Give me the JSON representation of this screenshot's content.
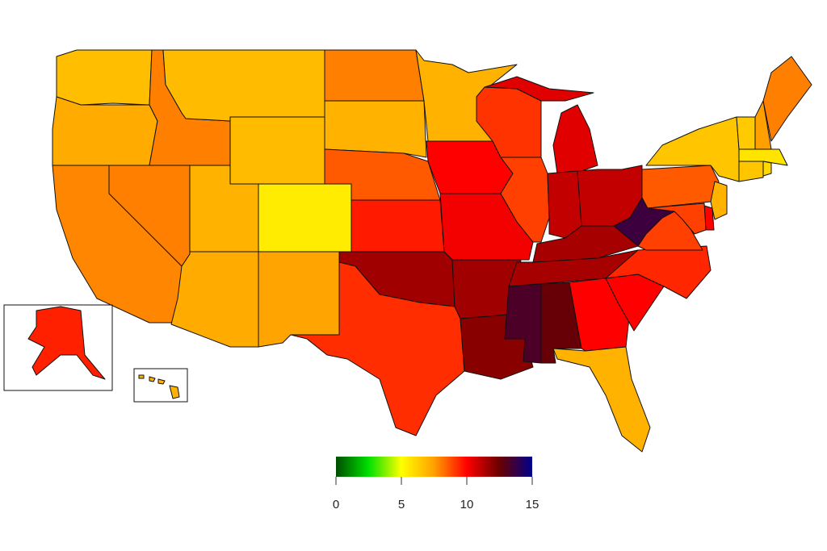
{
  "map": {
    "type": "choropleth",
    "region": "United States",
    "color_scale": {
      "min": 0,
      "max": 15,
      "stops": [
        {
          "value": 0,
          "color": "#004d00"
        },
        {
          "value": 2.5,
          "color": "#00e000"
        },
        {
          "value": 5,
          "color": "#ffff00"
        },
        {
          "value": 7.5,
          "color": "#ffa000"
        },
        {
          "value": 10,
          "color": "#ff0000"
        },
        {
          "value": 12.5,
          "color": "#6a0000"
        },
        {
          "value": 15,
          "color": "#00008a"
        }
      ]
    },
    "state_values": {
      "WA": 6.7,
      "OR": 7.2,
      "CA": 7.9,
      "NV": 8.0,
      "ID": 8.0,
      "MT": 6.8,
      "WY": 6.8,
      "UT": 7.0,
      "AZ": 7.2,
      "CO": 5.5,
      "NM": 7.4,
      "ND": 8.0,
      "SD": 7.0,
      "NE": 8.6,
      "KS": 9.6,
      "OK": 11.6,
      "TX": 9.3,
      "MN": 7.0,
      "IA": 10.0,
      "MO": 10.2,
      "AR": 11.6,
      "LA": 12.0,
      "WI": 9.2,
      "IL": 9.0,
      "MI": 10.5,
      "IN": 11.0,
      "OH": 11.0,
      "KY": 11.5,
      "TN": 11.5,
      "MS": 13.2,
      "AL": 12.6,
      "GA": 10.0,
      "FL": 7.0,
      "SC": 10.0,
      "NC": 9.4,
      "VA": 9.0,
      "WV": 13.6,
      "PA": 8.6,
      "NY": 6.5,
      "VT": 6.4,
      "NH": 7.5,
      "ME": 8.0,
      "MA": 5.7,
      "CT": 6.5,
      "RI": 6.0,
      "NJ": 7.0,
      "DE": 10.0,
      "MD": 9.0,
      "AK": 9.5,
      "HI": 7.0
    }
  },
  "legend": {
    "ticks": [
      "0",
      "5",
      "10",
      "15"
    ]
  }
}
